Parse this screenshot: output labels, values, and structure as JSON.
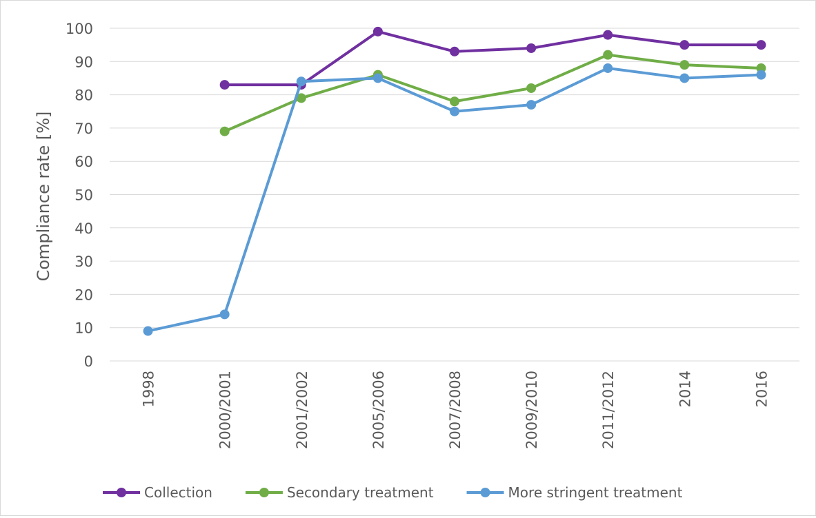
{
  "chart_data": {
    "type": "line",
    "title": "",
    "xlabel": "",
    "ylabel": "Compliance rate [%]",
    "ylim": [
      0,
      100
    ],
    "yticks": [
      0,
      10,
      20,
      30,
      40,
      50,
      60,
      70,
      80,
      90,
      100
    ],
    "grid": "horizontal",
    "legend_position": "bottom",
    "categories": [
      "1998",
      "2000/2001",
      "2001/2002",
      "2005/2006",
      "2007/2008",
      "2009/2010",
      "2011/2012",
      "2014",
      "2016"
    ],
    "series": [
      {
        "name": "Collection",
        "color": "#7030a0",
        "values": [
          null,
          83,
          83,
          99,
          93,
          94,
          98,
          95,
          95
        ]
      },
      {
        "name": "Secondary treatment",
        "color": "#70ad47",
        "values": [
          null,
          69,
          79,
          86,
          78,
          82,
          92,
          89,
          88
        ]
      },
      {
        "name": "More stringent treatment",
        "color": "#5b9bd5",
        "values": [
          9,
          14,
          84,
          85,
          75,
          77,
          88,
          85,
          86
        ]
      }
    ]
  }
}
